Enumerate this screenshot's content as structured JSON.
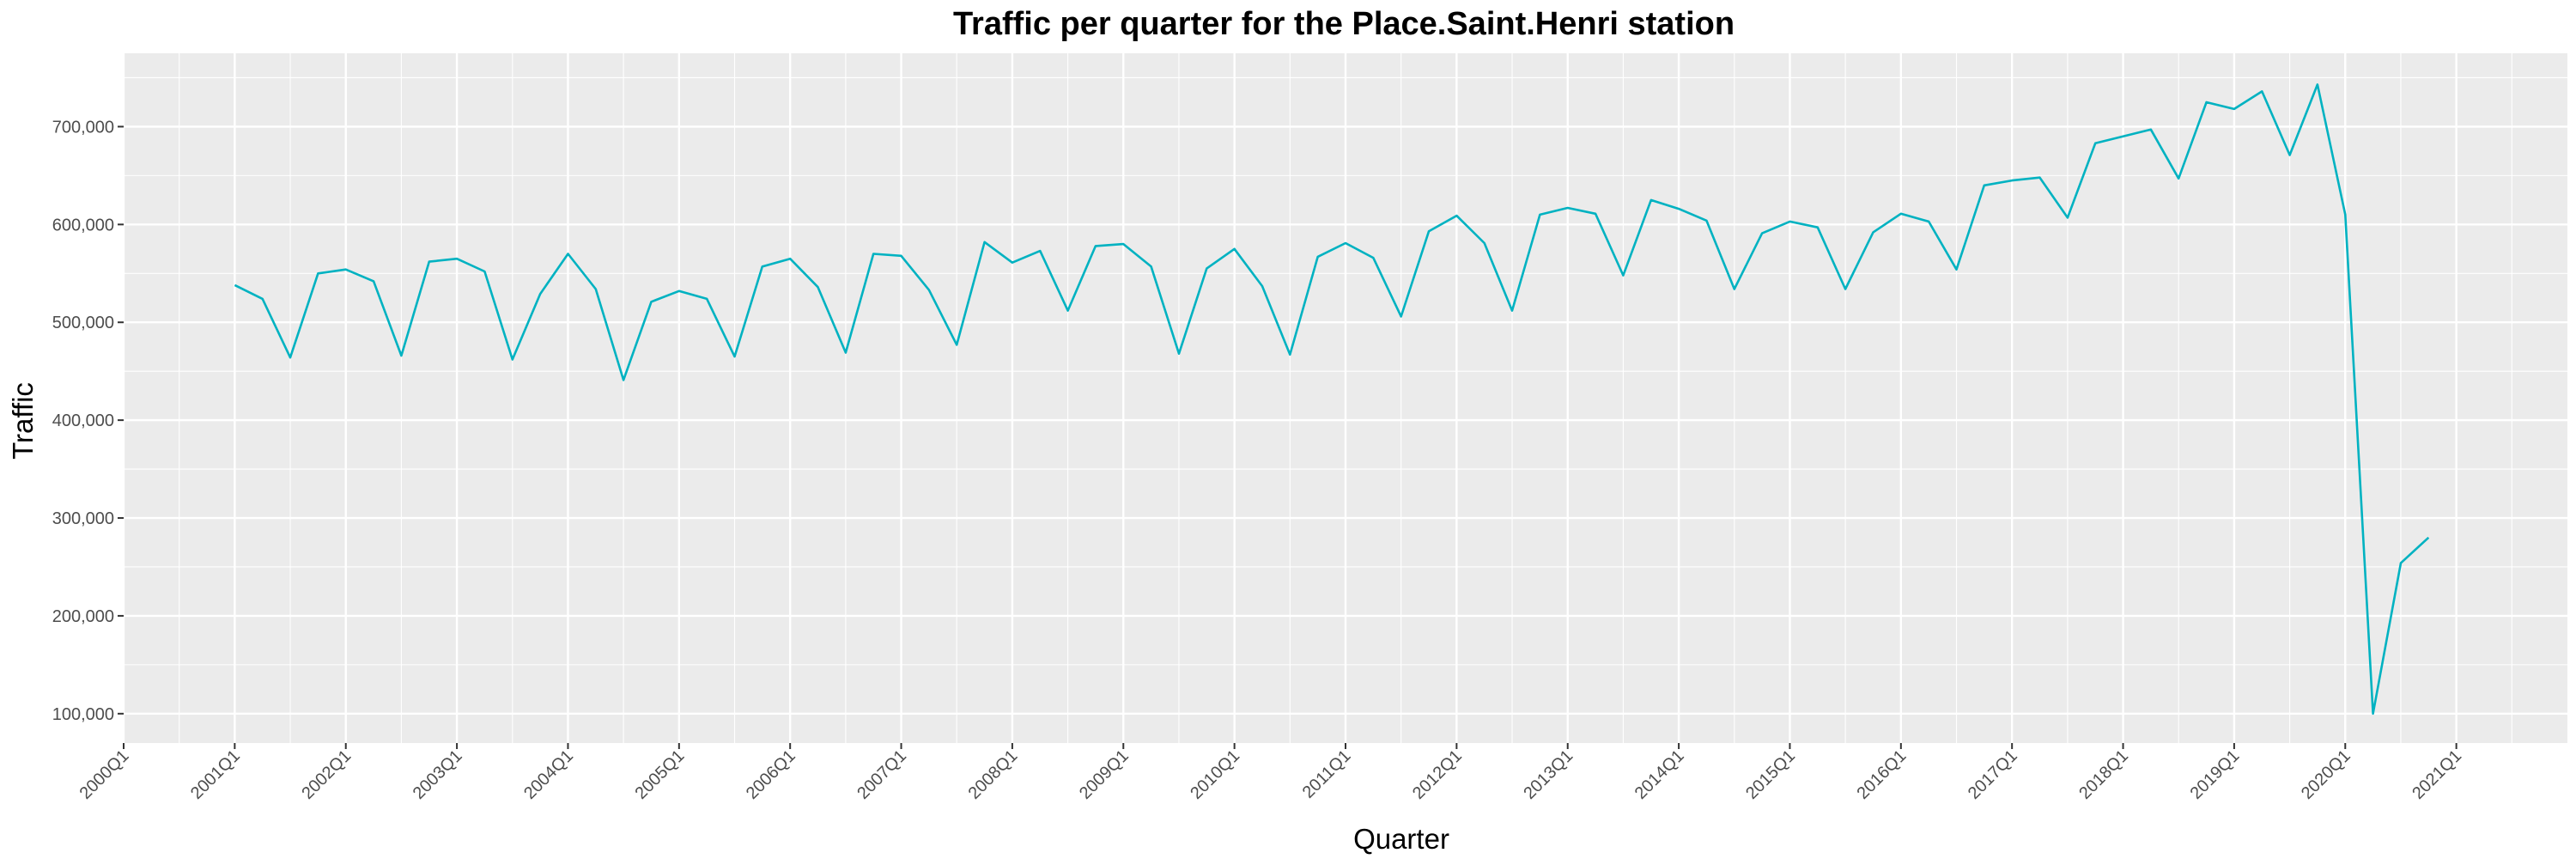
{
  "chart_data": {
    "type": "line",
    "title": "Traffic per quarter for the Place.Saint.Henri station",
    "xlabel": "Quarter",
    "ylabel": "Traffic",
    "x_tick_labels": [
      "2000Q1",
      "2001Q1",
      "2002Q1",
      "2003Q1",
      "2004Q1",
      "2005Q1",
      "2006Q1",
      "2007Q1",
      "2008Q1",
      "2009Q1",
      "2010Q1",
      "2011Q1",
      "2012Q1",
      "2013Q1",
      "2014Q1",
      "2015Q1",
      "2016Q1",
      "2017Q1",
      "2018Q1",
      "2019Q1",
      "2020Q1",
      "2021Q1"
    ],
    "y_ticks": [
      100000,
      200000,
      300000,
      400000,
      500000,
      600000,
      700000
    ],
    "y_tick_labels": [
      "100,000",
      "200,000",
      "300,000",
      "400,000",
      "500,000",
      "600,000",
      "700,000"
    ],
    "ylim": [
      70000,
      775000
    ],
    "xlim": [
      "2000Q1",
      "2022Q1"
    ],
    "grid": true,
    "colors": {
      "series": "#00b2c1",
      "panel": "#ebebeb",
      "grid": "#ffffff"
    },
    "series": [
      {
        "x": [
          "2001Q1",
          "2001Q2",
          "2001Q3",
          "2001Q4",
          "2002Q1",
          "2002Q2",
          "2002Q3",
          "2002Q4",
          "2003Q1",
          "2003Q2",
          "2003Q3",
          "2003Q4",
          "2004Q1",
          "2004Q2",
          "2004Q3",
          "2004Q4",
          "2005Q1",
          "2005Q2",
          "2005Q3",
          "2005Q4",
          "2006Q1",
          "2006Q2",
          "2006Q3",
          "2006Q4",
          "2007Q1",
          "2007Q2",
          "2007Q3",
          "2007Q4",
          "2008Q1",
          "2008Q2",
          "2008Q3",
          "2008Q4",
          "2009Q1",
          "2009Q2",
          "2009Q3",
          "2009Q4",
          "2010Q1",
          "2010Q2",
          "2010Q3",
          "2010Q4",
          "2011Q1",
          "2011Q2",
          "2011Q3",
          "2011Q4",
          "2012Q1",
          "2012Q2",
          "2012Q3",
          "2012Q4",
          "2013Q1",
          "2013Q2",
          "2013Q3",
          "2013Q4",
          "2014Q1",
          "2014Q2",
          "2014Q3",
          "2014Q4",
          "2015Q1",
          "2015Q2",
          "2015Q3",
          "2015Q4",
          "2016Q1",
          "2016Q2",
          "2016Q3",
          "2016Q4",
          "2017Q1",
          "2017Q2",
          "2017Q3",
          "2017Q4",
          "2018Q1",
          "2018Q2",
          "2018Q3",
          "2018Q4",
          "2019Q1",
          "2019Q2",
          "2019Q3",
          "2019Q4",
          "2020Q1",
          "2020Q2",
          "2020Q3",
          "2020Q4"
        ],
        "values": [
          538000,
          524000,
          464000,
          550000,
          554000,
          542000,
          466000,
          562000,
          565000,
          552000,
          462000,
          529000,
          570000,
          534000,
          441000,
          521000,
          532000,
          524000,
          465000,
          557000,
          565000,
          536000,
          469000,
          570000,
          568000,
          533000,
          477000,
          582000,
          561000,
          573000,
          512000,
          578000,
          580000,
          557000,
          468000,
          555000,
          575000,
          537000,
          467000,
          567000,
          581000,
          566000,
          506000,
          593000,
          609000,
          581000,
          512000,
          610000,
          617000,
          611000,
          548000,
          625000,
          616000,
          604000,
          534000,
          591000,
          603000,
          597000,
          534000,
          592000,
          611000,
          603000,
          554000,
          640000,
          645000,
          648000,
          607000,
          683000,
          690000,
          697000,
          647000,
          725000,
          718000,
          736000,
          671000,
          743000,
          610000,
          100000,
          254000,
          280000
        ]
      }
    ]
  }
}
